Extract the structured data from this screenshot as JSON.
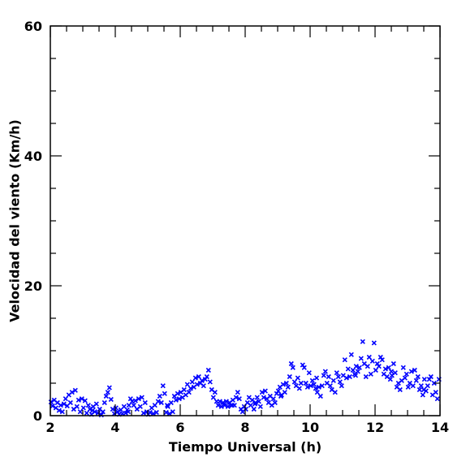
{
  "chart_data": {
    "type": "scatter",
    "title": "",
    "xlabel": "Tiempo Universal (h)",
    "ylabel": "Velocidad del viento (Km/h)",
    "xlim": [
      2,
      14
    ],
    "ylim": [
      0,
      60
    ],
    "x_ticks": [
      2,
      4,
      6,
      8,
      10,
      12,
      14
    ],
    "y_ticks": [
      0,
      20,
      40,
      60
    ],
    "x_minor_step": 0.5,
    "y_minor_step": 5,
    "marker": "x",
    "color": "#0000ff",
    "grid": false,
    "legend": "none",
    "series": [
      {
        "points": [
          [
            2.02,
            2.1
          ],
          [
            2.07,
            1.5
          ],
          [
            2.12,
            2.4
          ],
          [
            2.17,
            1.2
          ],
          [
            2.22,
            2.0
          ],
          [
            2.27,
            0.8
          ],
          [
            2.32,
            1.6
          ],
          [
            2.37,
            0.6
          ],
          [
            2.42,
            1.8
          ],
          [
            2.47,
            2.6
          ],
          [
            2.52,
            1.5
          ],
          [
            2.57,
            3.2
          ],
          [
            2.62,
            2.0
          ],
          [
            2.67,
            3.6
          ],
          [
            2.72,
            1.0
          ],
          [
            2.77,
            3.9
          ],
          [
            2.82,
            1.4
          ],
          [
            2.87,
            2.4
          ],
          [
            2.92,
            0.6
          ],
          [
            2.97,
            2.6
          ],
          [
            3.02,
            1.2
          ],
          [
            3.07,
            2.3
          ],
          [
            3.12,
            0.4
          ],
          [
            3.17,
            1.6
          ],
          [
            3.22,
            1.0
          ],
          [
            3.27,
            0.2
          ],
          [
            3.32,
            1.4
          ],
          [
            3.37,
            0.6
          ],
          [
            3.42,
            1.8
          ],
          [
            3.47,
            0.4
          ],
          [
            3.52,
            1.0
          ],
          [
            3.57,
            0.1
          ],
          [
            3.62,
            0.6
          ],
          [
            3.67,
            2.0
          ],
          [
            3.72,
            3.0
          ],
          [
            3.77,
            3.6
          ],
          [
            3.82,
            4.3
          ],
          [
            3.87,
            2.5
          ],
          [
            3.92,
            1.0
          ],
          [
            3.97,
            0.3
          ],
          [
            4.02,
            1.2
          ],
          [
            4.07,
            0.6
          ],
          [
            4.12,
            0.2
          ],
          [
            4.17,
            0.9
          ],
          [
            4.22,
            0.3
          ],
          [
            4.27,
            1.4
          ],
          [
            4.32,
            0.4
          ],
          [
            4.37,
            0.9
          ],
          [
            4.42,
            1.6
          ],
          [
            4.47,
            2.6
          ],
          [
            4.52,
            2.2
          ],
          [
            4.57,
            1.6
          ],
          [
            4.62,
            2.3
          ],
          [
            4.67,
            1.0
          ],
          [
            4.72,
            2.6
          ],
          [
            4.77,
            1.4
          ],
          [
            4.82,
            2.8
          ],
          [
            4.87,
            0.4
          ],
          [
            4.92,
            2.0
          ],
          [
            4.97,
            0.6
          ],
          [
            5.02,
            0.2
          ],
          [
            5.07,
            0.5
          ],
          [
            5.12,
            1.2
          ],
          [
            5.17,
            0.3
          ],
          [
            5.22,
            1.6
          ],
          [
            5.27,
            0.5
          ],
          [
            5.32,
            2.2
          ],
          [
            5.37,
            3.0
          ],
          [
            5.42,
            2.0
          ],
          [
            5.47,
            4.6
          ],
          [
            5.52,
            3.4
          ],
          [
            5.57,
            0.5
          ],
          [
            5.62,
            1.4
          ],
          [
            5.67,
            0.3
          ],
          [
            5.72,
            2.0
          ],
          [
            5.77,
            0.6
          ],
          [
            5.82,
            3.0
          ],
          [
            5.87,
            2.4
          ],
          [
            5.92,
            3.4
          ],
          [
            5.97,
            2.6
          ],
          [
            6.02,
            3.6
          ],
          [
            6.07,
            2.8
          ],
          [
            6.12,
            4.0
          ],
          [
            6.17,
            3.2
          ],
          [
            6.22,
            4.8
          ],
          [
            6.27,
            3.6
          ],
          [
            6.32,
            4.2
          ],
          [
            6.37,
            5.2
          ],
          [
            6.42,
            4.4
          ],
          [
            6.47,
            5.8
          ],
          [
            6.52,
            4.8
          ],
          [
            6.57,
            6.0
          ],
          [
            6.62,
            5.0
          ],
          [
            6.67,
            5.4
          ],
          [
            6.72,
            4.6
          ],
          [
            6.77,
            5.6
          ],
          [
            6.82,
            6.0
          ],
          [
            6.87,
            7.0
          ],
          [
            6.92,
            5.2
          ],
          [
            6.97,
            4.0
          ],
          [
            7.02,
            2.8
          ],
          [
            7.07,
            3.6
          ],
          [
            7.12,
            2.2
          ],
          [
            7.17,
            1.6
          ],
          [
            7.22,
            2.2
          ],
          [
            7.27,
            1.4
          ],
          [
            7.32,
            2.0
          ],
          [
            7.37,
            1.6
          ],
          [
            7.42,
            2.2
          ],
          [
            7.47,
            1.4
          ],
          [
            7.52,
            2.0
          ],
          [
            7.57,
            1.6
          ],
          [
            7.62,
            2.4
          ],
          [
            7.67,
            1.6
          ],
          [
            7.72,
            2.8
          ],
          [
            7.77,
            3.6
          ],
          [
            7.82,
            2.6
          ],
          [
            7.87,
            1.0
          ],
          [
            7.92,
            0.6
          ],
          [
            7.97,
            1.4
          ],
          [
            8.02,
            1.0
          ],
          [
            8.07,
            2.0
          ],
          [
            8.12,
            2.8
          ],
          [
            8.17,
            1.6
          ],
          [
            8.22,
            2.4
          ],
          [
            8.27,
            1.0
          ],
          [
            8.32,
            2.0
          ],
          [
            8.37,
            2.8
          ],
          [
            8.42,
            2.2
          ],
          [
            8.47,
            1.4
          ],
          [
            8.52,
            3.6
          ],
          [
            8.57,
            2.8
          ],
          [
            8.62,
            3.8
          ],
          [
            8.67,
            2.6
          ],
          [
            8.72,
            2.0
          ],
          [
            8.77,
            3.0
          ],
          [
            8.82,
            1.6
          ],
          [
            8.87,
            2.6
          ],
          [
            8.92,
            2.0
          ],
          [
            8.97,
            3.4
          ],
          [
            9.02,
            3.8
          ],
          [
            9.07,
            4.4
          ],
          [
            9.12,
            3.2
          ],
          [
            9.17,
            4.8
          ],
          [
            9.22,
            3.6
          ],
          [
            9.27,
            5.0
          ],
          [
            9.32,
            4.4
          ],
          [
            9.37,
            6.0
          ],
          [
            9.42,
            8.0
          ],
          [
            9.47,
            7.4
          ],
          [
            9.52,
            5.2
          ],
          [
            9.57,
            4.6
          ],
          [
            9.62,
            5.8
          ],
          [
            9.67,
            4.2
          ],
          [
            9.72,
            5.0
          ],
          [
            9.77,
            7.8
          ],
          [
            9.82,
            7.4
          ],
          [
            9.87,
            5.0
          ],
          [
            9.92,
            4.4
          ],
          [
            9.97,
            6.6
          ],
          [
            10.02,
            4.6
          ],
          [
            10.07,
            5.4
          ],
          [
            10.12,
            4.8
          ],
          [
            10.17,
            4.2
          ],
          [
            10.22,
            3.6
          ],
          [
            10.27,
            4.4
          ],
          [
            10.32,
            3.0
          ],
          [
            10.37,
            4.6
          ],
          [
            10.42,
            6.2
          ],
          [
            10.47,
            6.8
          ],
          [
            10.52,
            5.0
          ],
          [
            10.57,
            6.0
          ],
          [
            10.62,
            4.6
          ],
          [
            10.67,
            4.0
          ],
          [
            10.72,
            5.4
          ],
          [
            10.77,
            3.6
          ],
          [
            10.82,
            6.6
          ],
          [
            10.87,
            6.0
          ],
          [
            10.92,
            5.2
          ],
          [
            10.97,
            4.6
          ],
          [
            11.02,
            6.2
          ],
          [
            11.07,
            8.6
          ],
          [
            11.12,
            5.8
          ],
          [
            11.17,
            7.2
          ],
          [
            11.22,
            6.0
          ],
          [
            11.27,
            9.4
          ],
          [
            11.32,
            7.0
          ],
          [
            11.37,
            6.4
          ],
          [
            11.42,
            7.6
          ],
          [
            11.47,
            6.8
          ],
          [
            11.52,
            7.4
          ],
          [
            11.57,
            8.8
          ],
          [
            11.62,
            11.4
          ],
          [
            11.67,
            8.0
          ],
          [
            11.72,
            6.0
          ],
          [
            11.77,
            7.6
          ],
          [
            11.82,
            9.0
          ],
          [
            11.87,
            6.4
          ],
          [
            11.92,
            8.4
          ],
          [
            11.97,
            11.2
          ],
          [
            12.02,
            7.0
          ],
          [
            12.07,
            8.0
          ],
          [
            12.12,
            7.6
          ],
          [
            12.17,
            9.0
          ],
          [
            12.22,
            8.6
          ],
          [
            12.27,
            6.4
          ],
          [
            12.32,
            7.2
          ],
          [
            12.37,
            6.0
          ],
          [
            12.42,
            7.4
          ],
          [
            12.47,
            5.6
          ],
          [
            12.52,
            6.2
          ],
          [
            12.57,
            8.0
          ],
          [
            12.62,
            6.6
          ],
          [
            12.67,
            4.4
          ],
          [
            12.72,
            5.0
          ],
          [
            12.77,
            4.0
          ],
          [
            12.82,
            5.4
          ],
          [
            12.87,
            7.4
          ],
          [
            12.92,
            5.8
          ],
          [
            12.97,
            6.4
          ],
          [
            13.02,
            4.4
          ],
          [
            13.07,
            5.0
          ],
          [
            13.12,
            6.8
          ],
          [
            13.17,
            4.6
          ],
          [
            13.22,
            7.0
          ],
          [
            13.27,
            5.4
          ],
          [
            13.32,
            6.0
          ],
          [
            13.37,
            4.0
          ],
          [
            13.42,
            4.6
          ],
          [
            13.47,
            3.2
          ],
          [
            13.52,
            5.6
          ],
          [
            13.57,
            3.8
          ],
          [
            13.62,
            4.6
          ],
          [
            13.67,
            5.6
          ],
          [
            13.72,
            6.0
          ],
          [
            13.77,
            3.2
          ],
          [
            13.82,
            5.0
          ],
          [
            13.87,
            3.6
          ],
          [
            13.92,
            2.6
          ],
          [
            13.97,
            5.6
          ],
          [
            3.3,
            0.8
          ],
          [
            4.4,
            0.6
          ],
          [
            5.6,
            1.6
          ],
          [
            7.6,
            1.6
          ],
          [
            8.3,
            1.8
          ],
          [
            9.1,
            3.0
          ],
          [
            10.2,
            5.8
          ],
          [
            11.4,
            6.2
          ],
          [
            12.5,
            6.8
          ],
          [
            13.5,
            4.0
          ]
        ]
      }
    ]
  }
}
